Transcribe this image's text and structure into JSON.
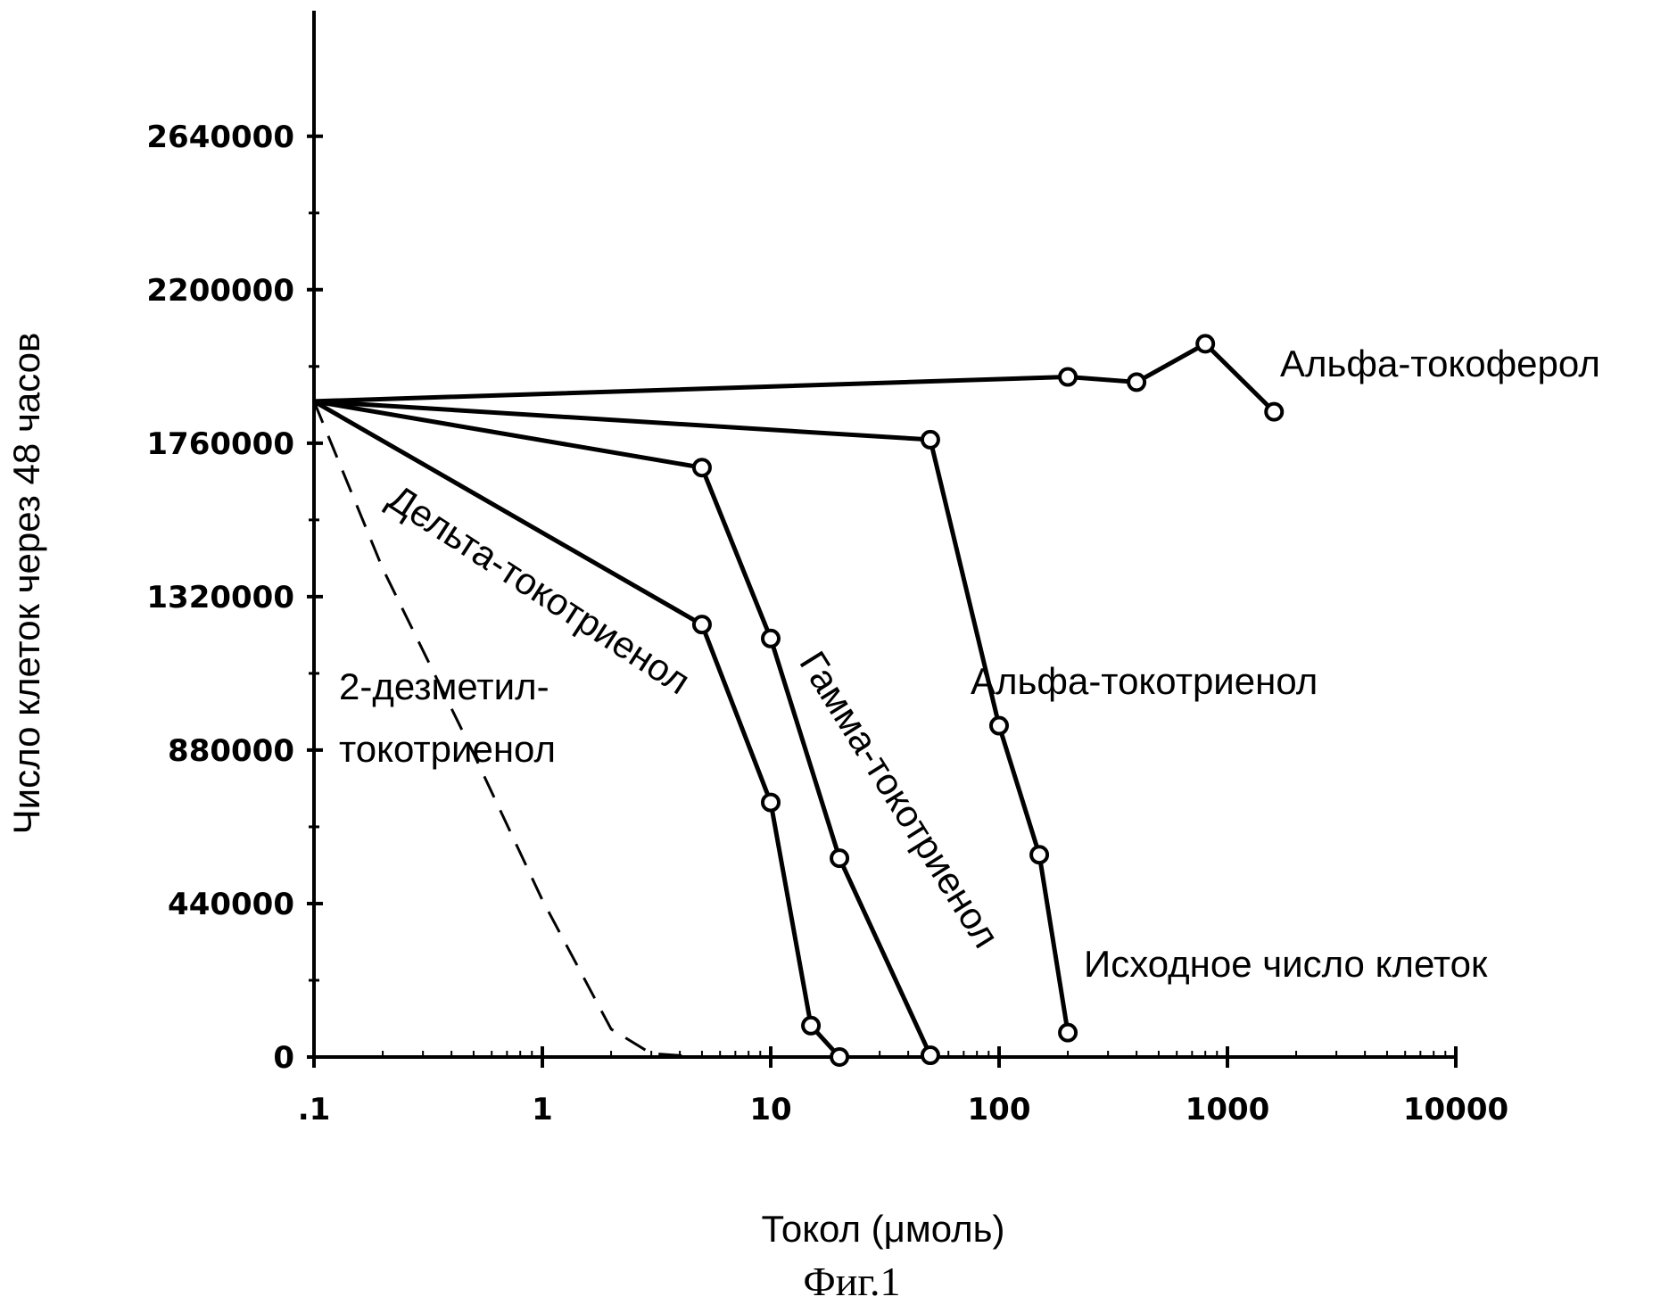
{
  "chart_data": {
    "type": "line",
    "xscale": "log",
    "xlabel": "Токол (μмоль)",
    "ylabel": "Число клеток через 48 часов",
    "caption": "Фиг.1",
    "xlim": [
      0.1,
      10000
    ],
    "ylim": [
      0,
      3000000
    ],
    "x_ticks": [
      0.1,
      1,
      10,
      100,
      1000,
      10000
    ],
    "x_tick_labels": [
      ".1",
      "1",
      "10",
      "100",
      "1000",
      "10000"
    ],
    "y_ticks": [
      0,
      440000,
      880000,
      1320000,
      1760000,
      2200000,
      2640000
    ],
    "y_tick_labels": [
      "0",
      "440000",
      "880000",
      "1320000",
      "1760000",
      "2200000",
      "2640000"
    ],
    "series": [
      {
        "name": "Альфа-токоферол",
        "style": "solid",
        "markers": true,
        "x": [
          0.1,
          200,
          400,
          800,
          1600
        ],
        "y": [
          1880000,
          1950000,
          1935000,
          2045000,
          1850000
        ]
      },
      {
        "name": "Альфа-токотриенол",
        "style": "solid",
        "markers": true,
        "x": [
          0.1,
          50,
          100,
          150,
          200
        ],
        "y": [
          1880000,
          1770000,
          950000,
          580000,
          70000
        ]
      },
      {
        "name": "Гамма-токотриенол",
        "style": "solid",
        "markers": true,
        "x": [
          0.1,
          5,
          10,
          20,
          50
        ],
        "y": [
          1880000,
          1690000,
          1200000,
          570000,
          5000
        ]
      },
      {
        "name": "Дельта-токотриенол",
        "style": "solid",
        "markers": true,
        "x": [
          0.1,
          5,
          10,
          15,
          20
        ],
        "y": [
          1880000,
          1240000,
          730000,
          90000,
          0
        ]
      },
      {
        "name": "2-дезметил-токотриенол",
        "style": "dashed",
        "markers": false,
        "x": [
          0.1,
          0.2,
          0.5,
          1,
          2,
          3,
          5
        ],
        "y": [
          1880000,
          1400000,
          870000,
          450000,
          80000,
          10000,
          0
        ]
      }
    ],
    "annotations": {
      "alpha_tocopherol": "Альфа-токоферол",
      "alpha_tocotrienol": "Альфа-токотриенол",
      "gamma_tocotrienol": "Гамма-токотриенол",
      "delta_tocotrienol": "Дельта-токотриенол",
      "desmethyl_line1": "2-дезметил-",
      "desmethyl_line2": "токотриенол",
      "initial_count": "Исходное число клеток"
    }
  }
}
